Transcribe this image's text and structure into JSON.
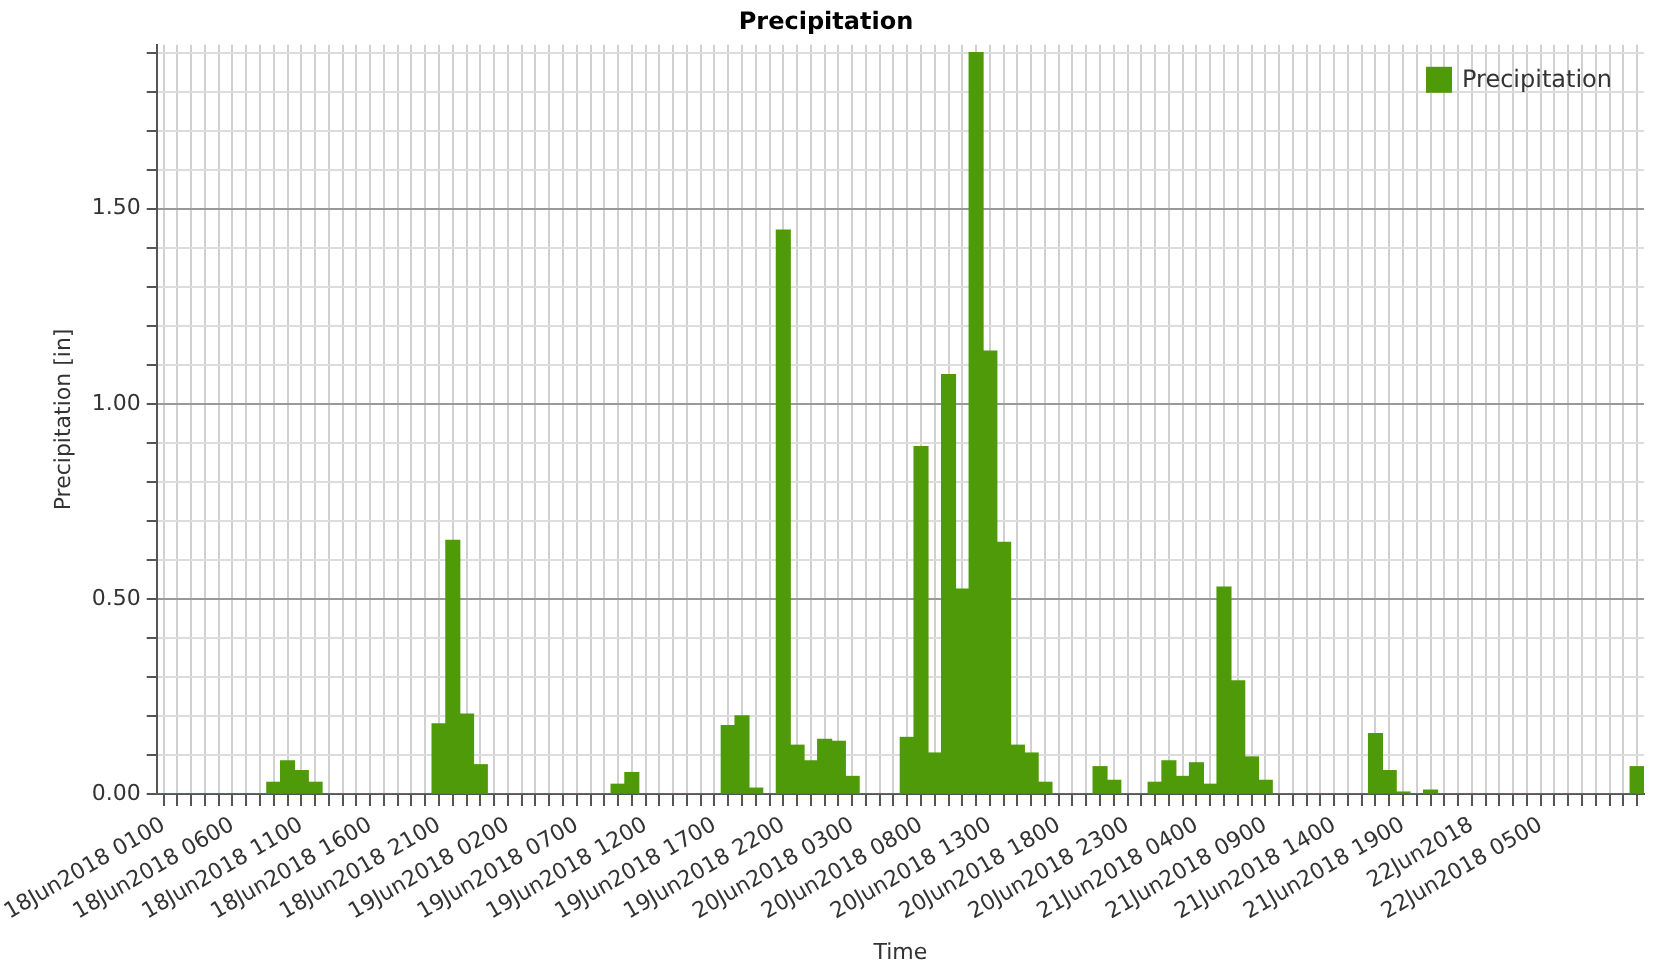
{
  "chart_data": {
    "type": "bar",
    "title": "Precipitation",
    "xlabel": "Time",
    "ylabel": "Precipitation [in]",
    "categories": [
      "18Jun2018 0100",
      null,
      null,
      null,
      null,
      "18Jun2018 0600",
      null,
      null,
      null,
      null,
      "18Jun2018 1100",
      null,
      null,
      null,
      null,
      "18Jun2018 1600",
      null,
      null,
      null,
      null,
      "18Jun2018 2100",
      null,
      null,
      null,
      null,
      "19Jun2018 0200",
      null,
      null,
      null,
      null,
      "19Jun2018 0700",
      null,
      null,
      null,
      null,
      "19Jun2018 1200",
      null,
      null,
      null,
      null,
      "19Jun2018 1700",
      null,
      null,
      null,
      null,
      "19Jun2018 2200",
      null,
      null,
      null,
      null,
      "20Jun2018 0300",
      null,
      null,
      null,
      null,
      "20Jun2018 0800",
      null,
      null,
      null,
      null,
      "20Jun2018 1300",
      null,
      null,
      null,
      null,
      "20Jun2018 1800",
      null,
      null,
      null,
      null,
      "20Jun2018 2300",
      null,
      null,
      null,
      null,
      "21Jun2018 0400",
      null,
      null,
      null,
      null,
      "21Jun2018 0900",
      null,
      null,
      null,
      null,
      "21Jun2018 1400",
      null,
      null,
      null,
      null,
      "21Jun2018 1900",
      null,
      null,
      null,
      null,
      "22Jun2018",
      null,
      null,
      null,
      null,
      "22Jun2018 0500",
      null,
      null,
      null,
      null,
      null,
      null,
      null
    ],
    "series": [
      {
        "name": "Precipitation",
        "color": "#4f9a08",
        "values": [
          0,
          0,
          0,
          0,
          0,
          0,
          0,
          0,
          0.03,
          0.085,
          0.06,
          0.03,
          0,
          0,
          0,
          0,
          0,
          0,
          0,
          0,
          0.18,
          0.65,
          0.205,
          0.075,
          0,
          0,
          0,
          0,
          0,
          0,
          0,
          0,
          0,
          0.025,
          0.055,
          0,
          0,
          0,
          0,
          0,
          0,
          0.175,
          0.2,
          0.015,
          0,
          1.445,
          0.125,
          0.085,
          0.14,
          0.135,
          0.045,
          0,
          0,
          0,
          0.145,
          0.89,
          0.105,
          1.075,
          0.525,
          1.9,
          1.135,
          0.645,
          0.125,
          0.105,
          0.03,
          0,
          0,
          0,
          0.07,
          0.035,
          0,
          0,
          0.03,
          0.085,
          0.045,
          0.08,
          0.025,
          0.53,
          0.29,
          0.095,
          0.035,
          0,
          0,
          0,
          0,
          0,
          0,
          0,
          0.155,
          0.06,
          0.005,
          0,
          0.01,
          0,
          0,
          0,
          0,
          0,
          0,
          0,
          0,
          0,
          0,
          0,
          0,
          0,
          0,
          0.07
        ]
      }
    ],
    "ylim": [
      0,
      1.92
    ],
    "yticks": [
      {
        "value": 0,
        "label": "0.00"
      },
      {
        "value": 0.1,
        "label": null
      },
      {
        "value": 0.2,
        "label": null
      },
      {
        "value": 0.3,
        "label": null
      },
      {
        "value": 0.4,
        "label": null
      },
      {
        "value": 0.5,
        "label": "0.50"
      },
      {
        "value": 0.6,
        "label": null
      },
      {
        "value": 0.7,
        "label": null
      },
      {
        "value": 0.8,
        "label": null
      },
      {
        "value": 0.9,
        "label": null
      },
      {
        "value": 1.0,
        "label": "1.00"
      },
      {
        "value": 1.1,
        "label": null
      },
      {
        "value": 1.2,
        "label": null
      },
      {
        "value": 1.3,
        "label": null
      },
      {
        "value": 1.4,
        "label": null
      },
      {
        "value": 1.5,
        "label": "1.50"
      },
      {
        "value": 1.6,
        "label": null
      },
      {
        "value": 1.7,
        "label": null
      },
      {
        "value": 1.8,
        "label": null
      },
      {
        "value": 1.9,
        "label": null
      }
    ],
    "grid": true,
    "legend": "top right"
  }
}
